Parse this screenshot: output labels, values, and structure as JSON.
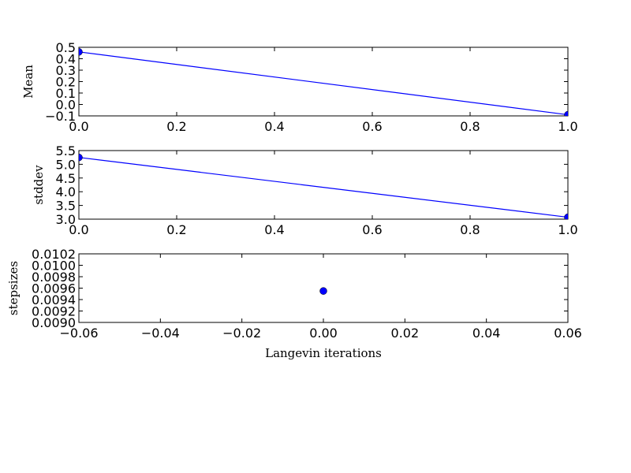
{
  "chart_data": [
    {
      "type": "line",
      "ylabel": "Mean",
      "xlabel": "",
      "xlim": [
        0.0,
        1.0
      ],
      "ylim": [
        -0.1,
        0.5
      ],
      "xticks": [
        0.0,
        0.2,
        0.4,
        0.6,
        0.8,
        1.0
      ],
      "xtick_labels": [
        "0.0",
        "0.2",
        "0.4",
        "0.6",
        "0.8",
        "1.0"
      ],
      "yticks": [
        -0.1,
        0.0,
        0.1,
        0.2,
        0.3,
        0.4,
        0.5
      ],
      "ytick_labels": [
        "−0.1",
        "0.0",
        "0.1",
        "0.2",
        "0.3",
        "0.4",
        "0.5"
      ],
      "x": [
        0,
        1
      ],
      "y": [
        0.46,
        -0.09
      ],
      "color": "#0000ff",
      "marker": "circle",
      "grid": false
    },
    {
      "type": "line",
      "ylabel": "stddev",
      "xlabel": "",
      "xlim": [
        0.0,
        1.0
      ],
      "ylim": [
        3.0,
        5.5
      ],
      "xticks": [
        0.0,
        0.2,
        0.4,
        0.6,
        0.8,
        1.0
      ],
      "xtick_labels": [
        "0.0",
        "0.2",
        "0.4",
        "0.6",
        "0.8",
        "1.0"
      ],
      "yticks": [
        3.0,
        3.5,
        4.0,
        4.5,
        5.0,
        5.5
      ],
      "ytick_labels": [
        "3.0",
        "3.5",
        "4.0",
        "4.5",
        "5.0",
        "5.5"
      ],
      "x": [
        0,
        1
      ],
      "y": [
        5.25,
        3.07
      ],
      "color": "#0000ff",
      "marker": "circle",
      "grid": false
    },
    {
      "type": "scatter",
      "ylabel": "stepsizes",
      "xlabel": "Langevin iterations",
      "xlim": [
        -0.06,
        0.06
      ],
      "ylim": [
        0.009,
        0.0102
      ],
      "xticks": [
        -0.06,
        -0.04,
        -0.02,
        0.0,
        0.02,
        0.04,
        0.06
      ],
      "xtick_labels": [
        "−0.06",
        "−0.04",
        "−0.02",
        "0.00",
        "0.02",
        "0.04",
        "0.06"
      ],
      "yticks": [
        0.009,
        0.0092,
        0.0094,
        0.0096,
        0.0098,
        0.01,
        0.0102
      ],
      "ytick_labels": [
        "0.0090",
        "0.0092",
        "0.0094",
        "0.0096",
        "0.0098",
        "0.0100",
        "0.0102"
      ],
      "x": [
        0
      ],
      "y": [
        0.00955
      ],
      "color": "#0000ff",
      "marker": "circle",
      "grid": false
    }
  ]
}
